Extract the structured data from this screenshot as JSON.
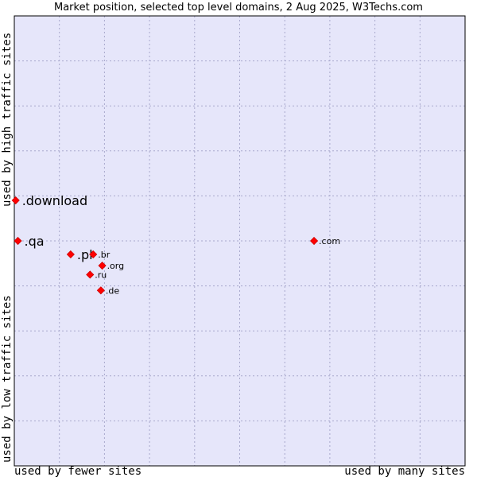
{
  "chart_data": {
    "type": "scatter",
    "title": "Market position, selected top level domains, 2 Aug 2025, W3Techs.com",
    "xlabel_left": "used by fewer sites",
    "xlabel_right": "used by many sites",
    "ylabel_bottom": "used by low traffic sites",
    "ylabel_top": "used by high traffic sites",
    "xlim": [
      0,
      100
    ],
    "ylim": [
      0,
      100
    ],
    "grid": true,
    "colors": {
      "plot_background": "#e6e6fa",
      "grid": "#a8a8cc",
      "marker": "#ff0000",
      "marker_edge": "#cc0000"
    },
    "points": [
      {
        "label": ".download",
        "x": 0.3,
        "y": 59.0,
        "size": "large"
      },
      {
        "label": ".qa",
        "x": 0.8,
        "y": 50.0,
        "size": "large"
      },
      {
        "label": ".pl",
        "x": 12.5,
        "y": 47.0,
        "size": "large"
      },
      {
        "label": ".br",
        "x": 17.5,
        "y": 47.0,
        "size": "small"
      },
      {
        "label": ".org",
        "x": 19.5,
        "y": 44.5,
        "size": "small"
      },
      {
        "label": ".ru",
        "x": 16.8,
        "y": 42.5,
        "size": "small"
      },
      {
        "label": ".de",
        "x": 19.2,
        "y": 39.0,
        "size": "small"
      },
      {
        "label": ".com",
        "x": 66.5,
        "y": 50.0,
        "size": "small"
      }
    ]
  }
}
